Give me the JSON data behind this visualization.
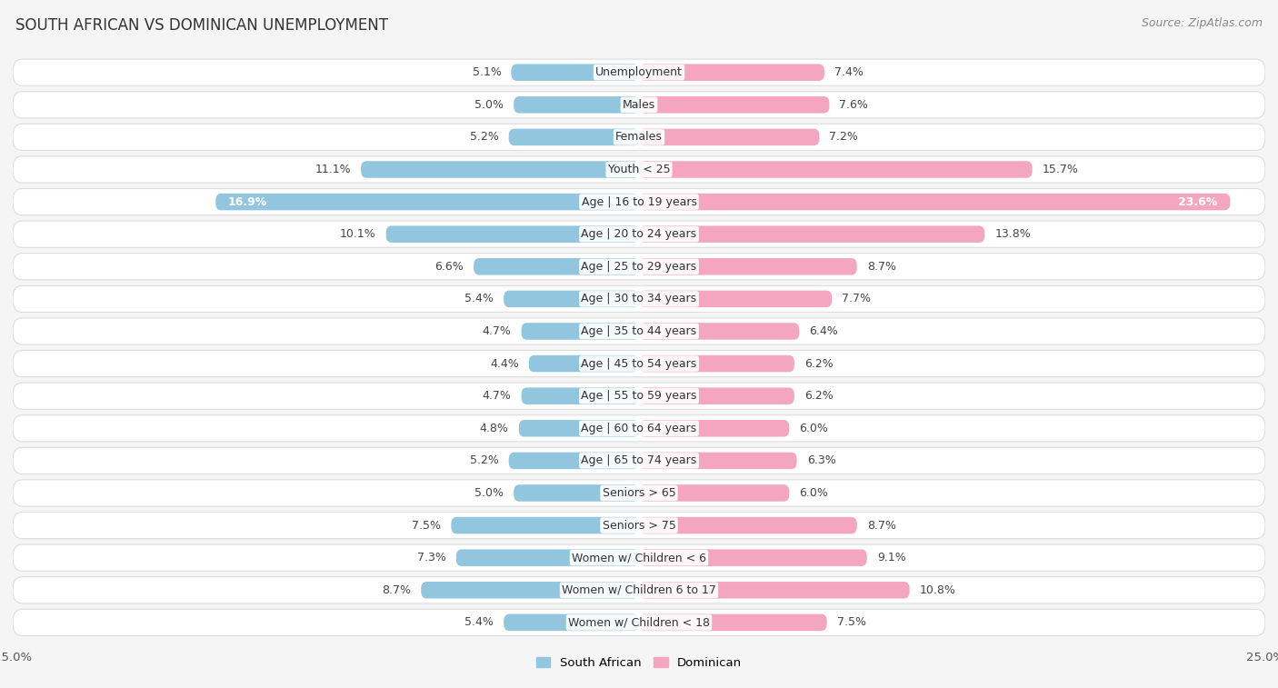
{
  "title": "SOUTH AFRICAN VS DOMINICAN UNEMPLOYMENT",
  "source": "Source: ZipAtlas.com",
  "categories": [
    "Unemployment",
    "Males",
    "Females",
    "Youth < 25",
    "Age | 16 to 19 years",
    "Age | 20 to 24 years",
    "Age | 25 to 29 years",
    "Age | 30 to 34 years",
    "Age | 35 to 44 years",
    "Age | 45 to 54 years",
    "Age | 55 to 59 years",
    "Age | 60 to 64 years",
    "Age | 65 to 74 years",
    "Seniors > 65",
    "Seniors > 75",
    "Women w/ Children < 6",
    "Women w/ Children 6 to 17",
    "Women w/ Children < 18"
  ],
  "south_african": [
    5.1,
    5.0,
    5.2,
    11.1,
    16.9,
    10.1,
    6.6,
    5.4,
    4.7,
    4.4,
    4.7,
    4.8,
    5.2,
    5.0,
    7.5,
    7.3,
    8.7,
    5.4
  ],
  "dominican": [
    7.4,
    7.6,
    7.2,
    15.7,
    23.6,
    13.8,
    8.7,
    7.7,
    6.4,
    6.2,
    6.2,
    6.0,
    6.3,
    6.0,
    8.7,
    9.1,
    10.8,
    7.5
  ],
  "sa_color": "#92c5de",
  "dom_color": "#f4a6c0",
  "sa_color_dark": "#5a9fc8",
  "dom_color_dark": "#e8648a",
  "bg_color": "#f5f5f5",
  "row_bg_color": "#ffffff",
  "row_border_color": "#dddddd",
  "max_val": 25.0,
  "label_fontsize": 9.0,
  "title_fontsize": 12,
  "source_fontsize": 9
}
